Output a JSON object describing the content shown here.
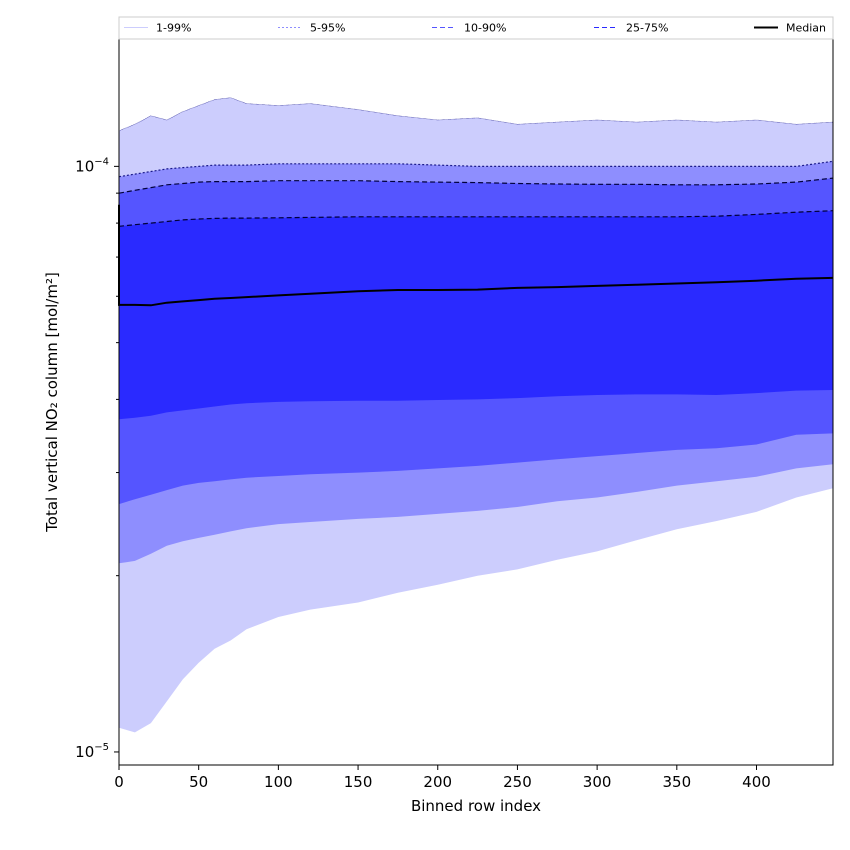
{
  "chart_data": {
    "type": "area",
    "xlabel": "Binned row index",
    "ylabel": "Total vertical NO₂ column [mol/m²]",
    "yscale": "log",
    "xlim": [
      0,
      448
    ],
    "ylim": [
      9.5e-06,
      0.000165
    ],
    "x_ticks": [
      0,
      50,
      100,
      150,
      200,
      250,
      300,
      350,
      400
    ],
    "y_ticks": [
      {
        "value": 1e-05,
        "base": "10",
        "exp": "−5"
      },
      {
        "value": 0.0001,
        "base": "10",
        "exp": "−4"
      }
    ],
    "legend_position": "top",
    "x": [
      0,
      10,
      20,
      30,
      40,
      50,
      60,
      70,
      80,
      100,
      120,
      150,
      175,
      200,
      225,
      250,
      275,
      300,
      325,
      350,
      375,
      400,
      425,
      448
    ],
    "bands": [
      {
        "name": "1-99%",
        "color": "#cccdfd",
        "lower": [
          1.1e-05,
          1.08e-05,
          1.12e-05,
          1.22e-05,
          1.33e-05,
          1.42e-05,
          1.5e-05,
          1.55e-05,
          1.62e-05,
          1.7e-05,
          1.75e-05,
          1.8e-05,
          1.87e-05,
          1.93e-05,
          2e-05,
          2.05e-05,
          2.13e-05,
          2.2e-05,
          2.3e-05,
          2.4e-05,
          2.48e-05,
          2.57e-05,
          2.72e-05,
          2.82e-05
        ],
        "upper": [
          0.000115,
          0.000118,
          0.000122,
          0.00012,
          0.000124,
          0.000127,
          0.00013,
          0.000131,
          0.000128,
          0.000127,
          0.000128,
          0.000125,
          0.000122,
          0.00012,
          0.000121,
          0.000118,
          0.000119,
          0.00012,
          0.000119,
          0.00012,
          0.000119,
          0.00012,
          0.000118,
          0.000119
        ]
      },
      {
        "name": "5-95%",
        "color": "#8e8efe",
        "lower": [
          2.1e-05,
          2.12e-05,
          2.18e-05,
          2.25e-05,
          2.29e-05,
          2.32e-05,
          2.35e-05,
          2.38e-05,
          2.41e-05,
          2.45e-05,
          2.47e-05,
          2.5e-05,
          2.52e-05,
          2.55e-05,
          2.58e-05,
          2.62e-05,
          2.68e-05,
          2.72e-05,
          2.78e-05,
          2.85e-05,
          2.9e-05,
          2.95e-05,
          3.05e-05,
          3.1e-05
        ],
        "upper": [
          9.6e-05,
          9.7e-05,
          9.8e-05,
          9.9e-05,
          9.95e-05,
          0.0001,
          0.0001005,
          0.0001005,
          0.0001005,
          0.000101,
          0.000101,
          0.000101,
          0.000101,
          0.0001005,
          0.0001,
          0.0001,
          0.0001,
          0.0001,
          0.0001,
          0.0001,
          0.0001,
          0.0001,
          0.0001,
          0.000102
        ]
      },
      {
        "name": "10-90%",
        "color": "#5555ff",
        "lower": [
          2.65e-05,
          2.7e-05,
          2.75e-05,
          2.8e-05,
          2.85e-05,
          2.88e-05,
          2.9e-05,
          2.92e-05,
          2.94e-05,
          2.96e-05,
          2.98e-05,
          3e-05,
          3.02e-05,
          3.05e-05,
          3.08e-05,
          3.12e-05,
          3.16e-05,
          3.2e-05,
          3.24e-05,
          3.28e-05,
          3.3e-05,
          3.35e-05,
          3.48e-05,
          3.5e-05
        ],
        "upper": [
          9e-05,
          9.1e-05,
          9.2e-05,
          9.3e-05,
          9.35e-05,
          9.4e-05,
          9.42e-05,
          9.42e-05,
          9.42e-05,
          9.45e-05,
          9.45e-05,
          9.45e-05,
          9.42e-05,
          9.4e-05,
          9.38e-05,
          9.35e-05,
          9.33e-05,
          9.32e-05,
          9.32e-05,
          9.3e-05,
          9.3e-05,
          9.33e-05,
          9.4e-05,
          9.55e-05
        ]
      },
      {
        "name": "25-75%",
        "color": "#2a2aff",
        "lower": [
          3.7e-05,
          3.72e-05,
          3.75e-05,
          3.8e-05,
          3.83e-05,
          3.86e-05,
          3.89e-05,
          3.92e-05,
          3.94e-05,
          3.96e-05,
          3.97e-05,
          3.98e-05,
          3.98e-05,
          3.99e-05,
          4e-05,
          4.02e-05,
          4.05e-05,
          4.07e-05,
          4.08e-05,
          4.08e-05,
          4.07e-05,
          4.1e-05,
          4.14e-05,
          4.15e-05
        ],
        "upper": [
          7.9e-05,
          7.95e-05,
          8e-05,
          8.05e-05,
          8.1e-05,
          8.13e-05,
          8.15e-05,
          8.16e-05,
          8.16e-05,
          8.17e-05,
          8.18e-05,
          8.2e-05,
          8.2e-05,
          8.2e-05,
          8.2e-05,
          8.2e-05,
          8.2e-05,
          8.2e-05,
          8.2e-05,
          8.2e-05,
          8.22e-05,
          8.28e-05,
          8.35e-05,
          8.4e-05
        ]
      }
    ],
    "series": [
      {
        "name": "Median",
        "color": "#000000",
        "values": [
          5.8e-05,
          5.8e-05,
          5.79e-05,
          5.85e-05,
          5.88e-05,
          5.91e-05,
          5.94e-05,
          5.96e-05,
          5.98e-05,
          6.02e-05,
          6.06e-05,
          6.12e-05,
          6.15e-05,
          6.15e-05,
          6.16e-05,
          6.2e-05,
          6.22e-05,
          6.25e-05,
          6.28e-05,
          6.31e-05,
          6.34e-05,
          6.38e-05,
          6.43e-05,
          6.45e-05
        ]
      }
    ],
    "legend": [
      {
        "label": "1-99%",
        "color": "#cccdfd",
        "dash": "none"
      },
      {
        "label": "5-95%",
        "color": "#8e8efe",
        "dash": "2,2"
      },
      {
        "label": "10-90%",
        "color": "#5555ff",
        "dash": "5,3"
      },
      {
        "label": "25-75%",
        "color": "#2a2aff",
        "dash": "5,3"
      },
      {
        "label": "Median",
        "color": "#000000",
        "dash": "none"
      }
    ]
  }
}
